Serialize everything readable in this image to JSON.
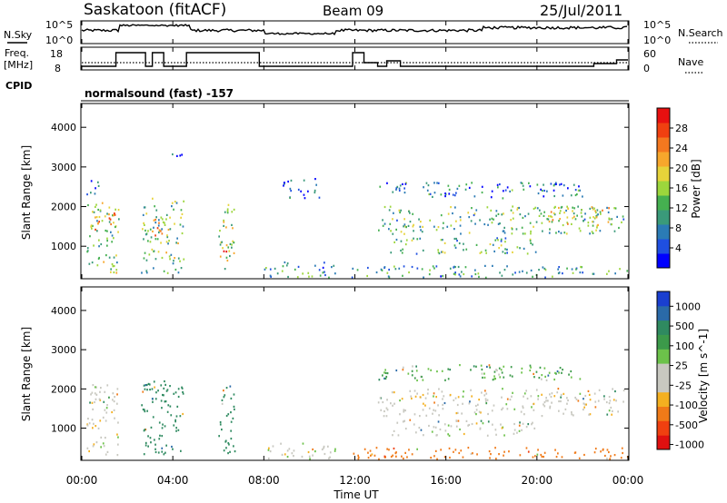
{
  "header": {
    "station": "Saskatoon (fitACF)",
    "beam": "Beam 09",
    "date": "25/Jul/2011"
  },
  "top_panel": {
    "left_label": "N.Sky",
    "left_ticks": [
      "10^5",
      "10^0"
    ],
    "right_ticks": [
      "10^5",
      "10^0"
    ],
    "right_label": "N.Search",
    "legend_style": "dotted"
  },
  "freq_panel": {
    "left_label_1": "Freq.",
    "left_label_2": "[MHz]",
    "left_ticks": [
      "18",
      "8"
    ],
    "right_ticks": [
      "60",
      "0"
    ],
    "right_label": "Nave",
    "legend_style": "dotted"
  },
  "cpid": {
    "label": "CPID",
    "value": "normalsound (fast) -157"
  },
  "chart_data": [
    {
      "type": "heatmap",
      "name": "power",
      "ylabel": "Slant Range [km]",
      "xlabel": "Time UT",
      "x_ticks": [
        "00:00",
        "04:00",
        "08:00",
        "12:00",
        "16:00",
        "20:00",
        "00:00"
      ],
      "x_range_hours": [
        0,
        24
      ],
      "y_ticks": [
        1000,
        2000,
        3000,
        4000
      ],
      "ylim": [
        180,
        4600
      ],
      "colorbar": {
        "label": "Power [dB]",
        "ticks": [
          "4",
          "8",
          "12",
          "16",
          "20",
          "24",
          "28"
        ],
        "colors": [
          "#0000ff",
          "#1f4fe0",
          "#2b7bb5",
          "#3a9a7a",
          "#45b050",
          "#9cd63c",
          "#e6d33a",
          "#f7a72c",
          "#f4781f",
          "#f04010",
          "#e81010"
        ]
      },
      "echo_regions": [
        {
          "t0": 0.2,
          "t1": 1.6,
          "r0": 300,
          "r1": 2100,
          "p": 14
        },
        {
          "t0": 0.3,
          "t1": 1.5,
          "r0": 1400,
          "r1": 1900,
          "p": 22
        },
        {
          "t0": 0.2,
          "t1": 0.9,
          "r0": 2300,
          "r1": 2700,
          "p": 6
        },
        {
          "t0": 2.6,
          "t1": 4.5,
          "r0": 300,
          "r1": 2200,
          "p": 14
        },
        {
          "t0": 3.1,
          "t1": 3.6,
          "r0": 1000,
          "r1": 1700,
          "p": 24
        },
        {
          "t0": 3.9,
          "t1": 4.4,
          "r0": 3200,
          "r1": 3500,
          "p": 6
        },
        {
          "t0": 6.0,
          "t1": 6.7,
          "r0": 300,
          "r1": 2100,
          "p": 16
        },
        {
          "t0": 6.1,
          "t1": 6.5,
          "r0": 500,
          "r1": 900,
          "p": 26
        },
        {
          "t0": 8.0,
          "t1": 11.2,
          "r0": 200,
          "r1": 600,
          "p": 10
        },
        {
          "t0": 8.8,
          "t1": 10.5,
          "r0": 2200,
          "r1": 2700,
          "p": 6
        },
        {
          "t0": 11.8,
          "t1": 24.0,
          "r0": 200,
          "r1": 500,
          "p": 10
        },
        {
          "t0": 13.0,
          "t1": 23.8,
          "r0": 1300,
          "r1": 2000,
          "p": 13
        },
        {
          "t0": 13.5,
          "t1": 20.0,
          "r0": 800,
          "r1": 1200,
          "p": 12
        },
        {
          "t0": 13.0,
          "t1": 22.0,
          "r0": 2200,
          "r1": 2600,
          "p": 8
        },
        {
          "t0": 20.5,
          "t1": 23.5,
          "r0": 1500,
          "r1": 2000,
          "p": 18
        }
      ]
    },
    {
      "type": "heatmap",
      "name": "velocity",
      "ylabel": "Slant Range [km]",
      "xlabel": "Time UT",
      "x_ticks": [
        "00:00",
        "04:00",
        "08:00",
        "12:00",
        "16:00",
        "20:00",
        "00:00"
      ],
      "x_range_hours": [
        0,
        24
      ],
      "y_ticks": [
        1000,
        2000,
        3000,
        4000
      ],
      "ylim": [
        180,
        4600
      ],
      "colorbar": {
        "label": "Velocity [m s^-1]",
        "ticks": [
          "1000",
          "500",
          "100",
          "25",
          "-25",
          "-100",
          "-500",
          "-1000"
        ],
        "colors": [
          "#1a3fd0",
          "#2a6aa8",
          "#2f8a60",
          "#3c9a4a",
          "#6cc24a",
          "#c8c8c0",
          "#c8c8c0",
          "#f4b020",
          "#f07a18",
          "#f04010",
          "#e01010"
        ]
      },
      "echo_regions": [
        {
          "t0": 0.2,
          "t1": 1.6,
          "r0": 300,
          "r1": 2100,
          "v": 0
        },
        {
          "t0": 2.6,
          "t1": 4.5,
          "r0": 300,
          "r1": 2200,
          "v": 150
        },
        {
          "t0": 6.0,
          "t1": 6.7,
          "r0": 300,
          "r1": 2100,
          "v": 200
        },
        {
          "t0": 8.0,
          "t1": 11.2,
          "r0": 200,
          "r1": 600,
          "v": 0
        },
        {
          "t0": 11.8,
          "t1": 24.0,
          "r0": 200,
          "r1": 500,
          "v": -300
        },
        {
          "t0": 13.0,
          "t1": 23.8,
          "r0": 1300,
          "r1": 2000,
          "v": 0
        },
        {
          "t0": 13.5,
          "t1": 20.0,
          "r0": 800,
          "r1": 1200,
          "v": 0
        },
        {
          "t0": 13.0,
          "t1": 22.0,
          "r0": 2200,
          "r1": 2600,
          "v": 50
        }
      ]
    }
  ]
}
